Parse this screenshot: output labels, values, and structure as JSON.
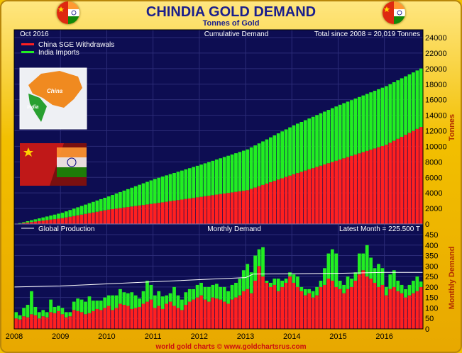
{
  "header": {
    "title": "CHINDIA GOLD DEMAND",
    "subtitle": "Tonnes of Gold",
    "footer": "world gold charts © www.goldchartsrus.com"
  },
  "chart_data": [
    {
      "type": "bar",
      "stacked": true,
      "title": "Cumulative Demand",
      "date_label": "Oct 2016",
      "total_label": "Total since 2008 = 20,019 Tonnes",
      "ylabel": "Tonnes",
      "ylim": [
        0,
        24000
      ],
      "yticks": [
        0,
        2000,
        4000,
        6000,
        8000,
        10000,
        12000,
        14000,
        16000,
        18000,
        20000,
        22000,
        24000
      ],
      "grid": true,
      "legend_position": "top-left",
      "x_start": "2008-01",
      "x_end": "2016-10",
      "x_tick_labels": [
        "2008",
        "2009",
        "2010",
        "2011",
        "2012",
        "2013",
        "2014",
        "2015",
        "2016"
      ],
      "series": [
        {
          "name": "China SGE Withdrawals",
          "color": "#ff2020",
          "checkpoints": [
            [
              0,
              0
            ],
            [
              12,
              750
            ],
            [
              24,
              1850
            ],
            [
              36,
              2650
            ],
            [
              48,
              3500
            ],
            [
              60,
              4350
            ],
            [
              72,
              6400
            ],
            [
              84,
              8300
            ],
            [
              96,
              10200
            ],
            [
              105,
              12500
            ]
          ]
        },
        {
          "name": "India Imports",
          "color": "#22ee22",
          "checkpoints": [
            [
              0,
              0
            ],
            [
              12,
              700
            ],
            [
              24,
              1700
            ],
            [
              36,
              3150
            ],
            [
              48,
              4150
            ],
            [
              60,
              5250
            ],
            [
              72,
              6300
            ],
            [
              84,
              7050
            ],
            [
              96,
              7550
            ],
            [
              105,
              7519
            ]
          ]
        }
      ]
    },
    {
      "type": "bar",
      "stacked": true,
      "title": "Monthly Demand",
      "latest_label": "Latest Month = 225.500 T",
      "ylabel": "Monthly Demand",
      "ylim": [
        0,
        450
      ],
      "yticks": [
        0,
        50,
        100,
        150,
        200,
        250,
        300,
        350,
        400,
        450
      ],
      "grid": true,
      "legend_position": "top-left",
      "line_series": {
        "name": "Global Production",
        "color": "#ffffff",
        "steps": [
          [
            0,
            200
          ],
          [
            12,
            205
          ],
          [
            24,
            215
          ],
          [
            36,
            225
          ],
          [
            48,
            235
          ],
          [
            60,
            245
          ],
          [
            62,
            262
          ],
          [
            84,
            265
          ],
          [
            96,
            270
          ],
          [
            105,
            270
          ]
        ]
      },
      "series": [
        {
          "name": "China SGE Withdrawals",
          "color": "#ff2020",
          "values": [
            50,
            45,
            60,
            55,
            70,
            65,
            50,
            60,
            55,
            80,
            75,
            85,
            70,
            55,
            60,
            90,
            85,
            80,
            70,
            75,
            85,
            95,
            90,
            100,
            110,
            90,
            100,
            120,
            115,
            110,
            95,
            100,
            105,
            120,
            130,
            140,
            100,
            110,
            95,
            120,
            130,
            110,
            100,
            90,
            115,
            130,
            140,
            150,
            160,
            140,
            130,
            150,
            145,
            140,
            130,
            120,
            140,
            150,
            160,
            180,
            190,
            170,
            230,
            300,
            250,
            220,
            200,
            210,
            180,
            200,
            220,
            250,
            220,
            200,
            180,
            160,
            170,
            150,
            160,
            200,
            210,
            240,
            230,
            200,
            190,
            170,
            190,
            200,
            230,
            260,
            280,
            250,
            240,
            220,
            200,
            210,
            160,
            190,
            200,
            180,
            170,
            150,
            160,
            170,
            180,
            200
          ]
        },
        {
          "name": "India Imports",
          "color": "#22ee22",
          "values": [
            30,
            20,
            40,
            60,
            110,
            40,
            30,
            30,
            25,
            60,
            30,
            25,
            30,
            25,
            20,
            40,
            60,
            60,
            60,
            80,
            50,
            40,
            45,
            50,
            50,
            70,
            60,
            70,
            60,
            60,
            80,
            60,
            40,
            60,
            100,
            70,
            60,
            70,
            60,
            40,
            40,
            90,
            60,
            50,
            60,
            60,
            50,
            60,
            60,
            60,
            70,
            60,
            70,
            60,
            70,
            60,
            70,
            70,
            80,
            100,
            120,
            100,
            120,
            80,
            140,
            10,
            20,
            30,
            60,
            30,
            20,
            20,
            40,
            50,
            20,
            30,
            20,
            30,
            40,
            30,
            80,
            120,
            150,
            160,
            40,
            40,
            60,
            40,
            40,
            100,
            80,
            150,
            100,
            70,
            110,
            80,
            40,
            70,
            80,
            50,
            40,
            40,
            50,
            60,
            70,
            26
          ]
        }
      ]
    }
  ]
}
